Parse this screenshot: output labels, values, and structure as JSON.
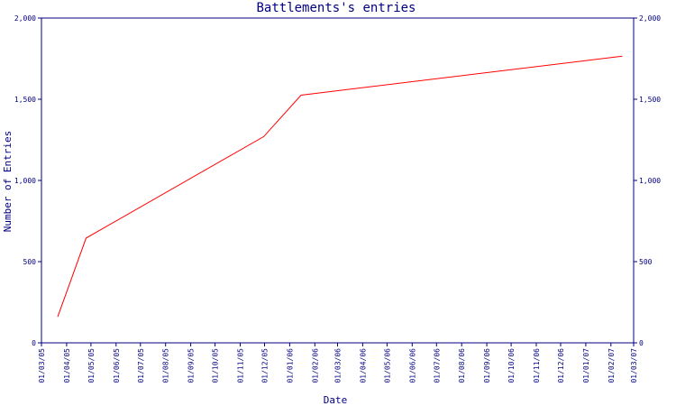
{
  "chart_data": {
    "type": "line",
    "title": "Battlements's entries",
    "xlabel": "Date",
    "ylabel": "Number of Entries",
    "ylim": [
      0,
      2000
    ],
    "y_ticks": [
      0,
      500,
      1000,
      1500,
      2000
    ],
    "y_tick_labels": [
      "0",
      "500",
      "1,000",
      "1,500",
      "2,000"
    ],
    "x_ticks": [
      "01/03/05",
      "01/04/05",
      "01/05/05",
      "01/06/05",
      "01/07/05",
      "01/08/05",
      "01/09/05",
      "01/10/05",
      "01/11/05",
      "01/12/05",
      "01/01/06",
      "01/02/06",
      "01/03/06",
      "01/04/06",
      "01/05/06",
      "01/06/06",
      "01/07/06",
      "01/08/06",
      "01/09/06",
      "01/10/06",
      "01/11/06",
      "01/12/06",
      "01/01/07",
      "01/02/07",
      "01/03/07"
    ],
    "grid": false,
    "colors": {
      "line": "#ff0000",
      "axis": "#000080",
      "text": "#000080"
    },
    "series": [
      {
        "x": [
          "2005-03-21",
          "2005-04-25",
          "2005-11-30",
          "2006-01-15",
          "2007-02-15"
        ],
        "y": [
          160,
          645,
          1270,
          1525,
          1765
        ]
      }
    ]
  }
}
